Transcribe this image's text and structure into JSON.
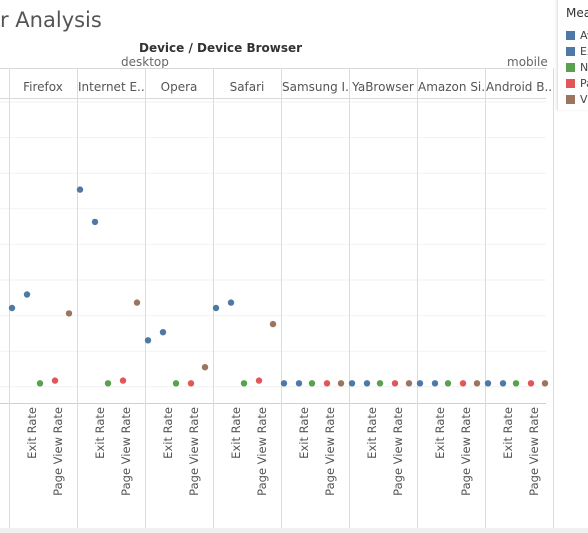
{
  "title": "r Analysis",
  "chart_data": {
    "type": "scatter",
    "column_header": "Device / Device Browser",
    "devices": [
      {
        "name": "desktop"
      },
      {
        "name": "mobile"
      }
    ],
    "browsers": [
      "",
      "Firefox",
      "Internet E..",
      "Opera",
      "Safari",
      "Samsung I..",
      "YaBrowser",
      "Amazon Si..",
      "Android B.."
    ],
    "measures": [
      "Avg. Session Duration",
      "Exit Rate",
      "New Sessions",
      "Page View Rate",
      "Visits"
    ],
    "x_tick_labels": [
      "Exit Rate",
      "Page View Rate"
    ],
    "series": [
      {
        "name": "Avg. Session Duration",
        "color": "#4e79a7",
        "values": [
          0.32,
          0.29,
          0.73,
          0.17,
          0.29,
          0.01,
          0.01,
          0.01,
          0.01
        ]
      },
      {
        "name": "Exit Rate",
        "color": "#4e79a7",
        "values": [
          0.34,
          0.34,
          0.61,
          0.2,
          0.31,
          0.01,
          0.01,
          0.01,
          0.01
        ]
      },
      {
        "name": "New Sessions",
        "color": "#59a14f",
        "values": [
          null,
          0.01,
          0.01,
          0.01,
          0.01,
          0.01,
          0.01,
          0.01,
          0.01
        ]
      },
      {
        "name": "Page View Rate",
        "color": "#e15759",
        "values": [
          null,
          0.02,
          0.02,
          0.01,
          0.02,
          0.01,
          0.01,
          0.01,
          0.01
        ]
      },
      {
        "name": "Visits",
        "color": "#9c755f",
        "values": [
          null,
          0.27,
          0.31,
          0.07,
          0.23,
          0.01,
          0.01,
          0.01,
          0.01
        ]
      }
    ],
    "legend": {
      "title": "Mea",
      "position": "right",
      "entries": [
        {
          "label": "Av",
          "color": "#4e79a7"
        },
        {
          "label": "Ex",
          "color": "#4e79a7"
        },
        {
          "label": "Ne",
          "color": "#59a14f"
        },
        {
          "label": "Pa",
          "color": "#e15759"
        },
        {
          "label": "Vi",
          "color": "#9c755f"
        }
      ]
    },
    "ylim": [
      0,
      1
    ],
    "grid": true
  }
}
